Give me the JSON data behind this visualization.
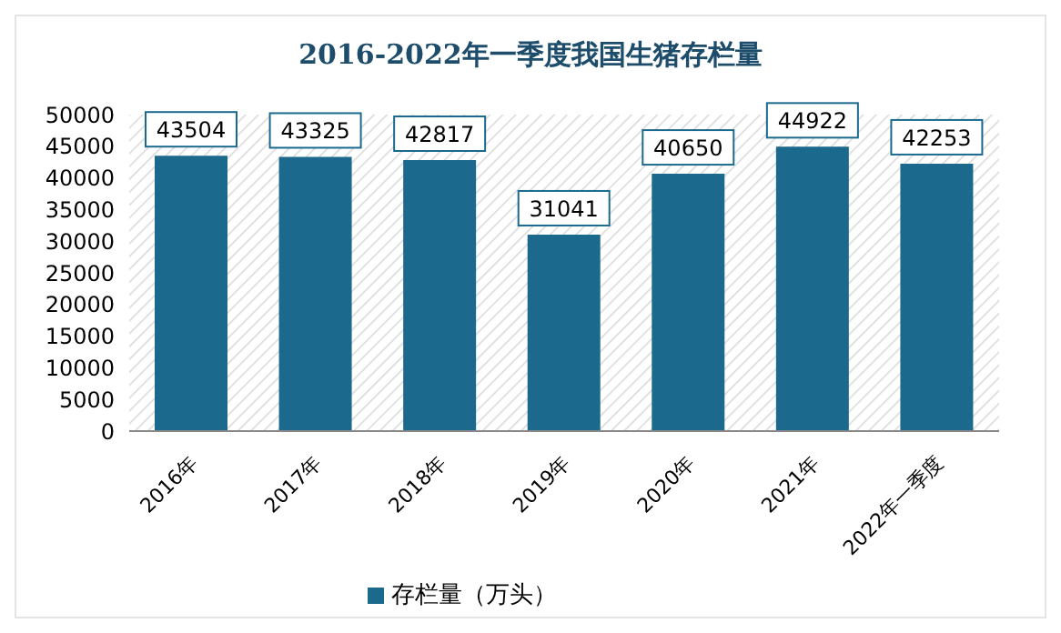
{
  "chart_data": {
    "type": "bar",
    "title": "2016-2022年一季度我国生猪存栏量",
    "categories": [
      "2016年",
      "2017年",
      "2018年",
      "2019年",
      "2020年",
      "2021年",
      "2022年一季度"
    ],
    "series": [
      {
        "name": "存栏量（万头）",
        "color": "#1b6a8e",
        "values": [
          43504,
          43325,
          42817,
          31041,
          40650,
          44922,
          42253
        ]
      }
    ],
    "ylim": [
      0,
      50000
    ],
    "yticks": [
      0,
      5000,
      10000,
      15000,
      20000,
      25000,
      30000,
      35000,
      40000,
      45000,
      50000
    ],
    "data_labels": true,
    "legend": "bottom"
  }
}
